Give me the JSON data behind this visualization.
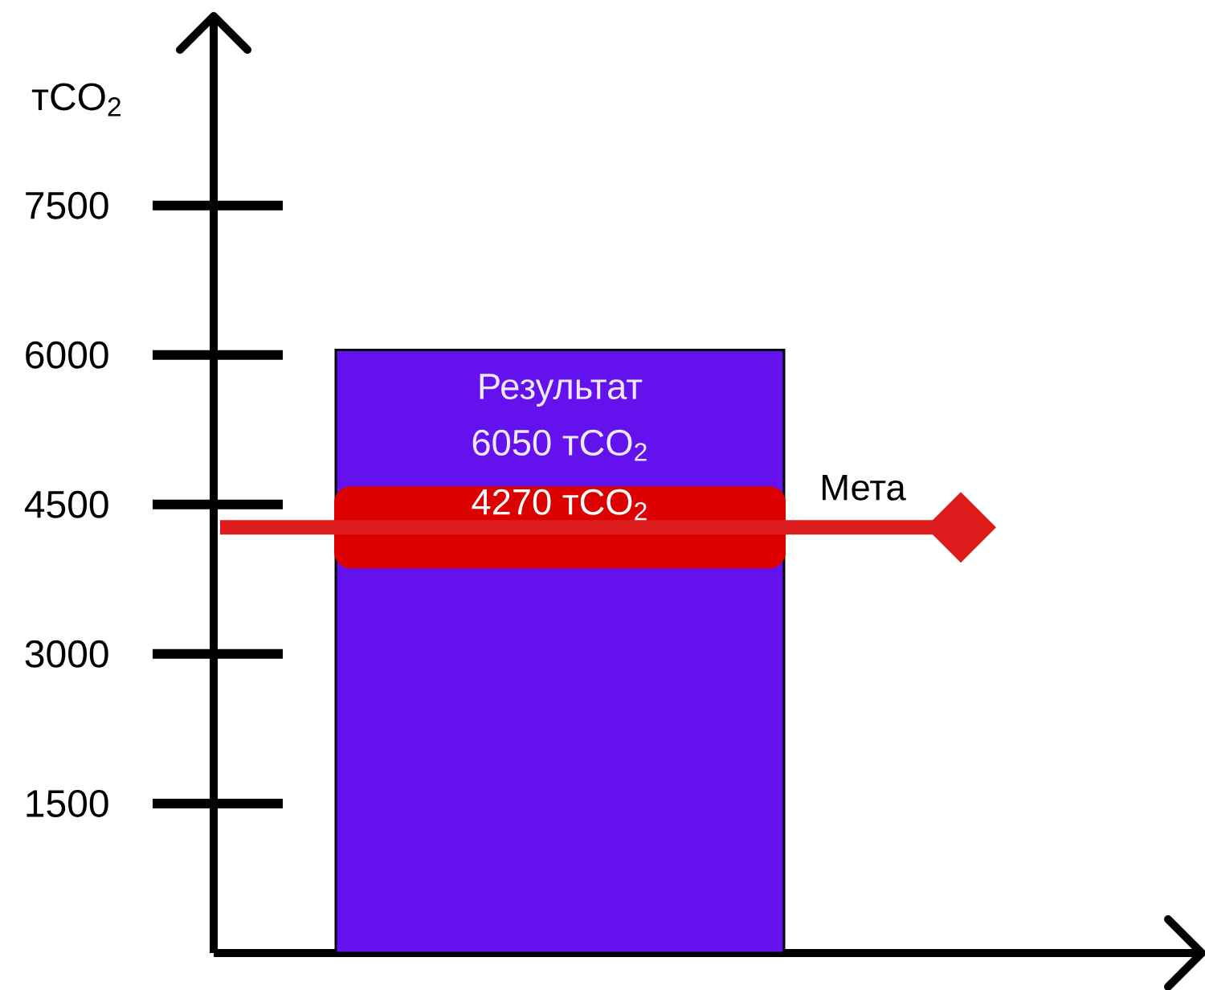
{
  "chart_data": {
    "type": "bar",
    "ylabel": "тCO$_{2}$",
    "categories": [
      null
    ],
    "series": [
      {
        "name": "Результат",
        "color": "#6312ee",
        "values": [
          6050
        ],
        "value_labels": [
          "6050 тCO$_{2}$"
        ]
      }
    ],
    "ylim": [
      0,
      9400
    ],
    "yticks": [
      1500,
      3000,
      4500,
      6000,
      7500
    ],
    "ref_lines": [
      {
        "axis": "y",
        "value": 4270,
        "label": "Мета",
        "color": "#dc1c1c"
      }
    ],
    "annotations": [
      {
        "text": "4270 тCO$_{2}$",
        "y": 4270
      }
    ]
  }
}
